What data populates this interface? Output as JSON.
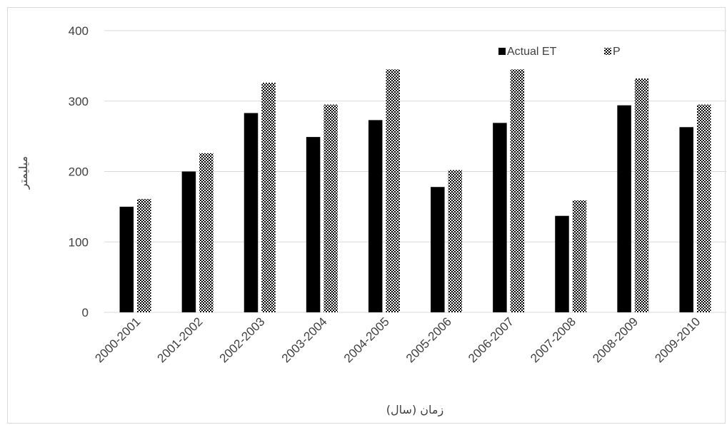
{
  "chart_data": {
    "type": "bar",
    "title": "",
    "xlabel": "زمان (سال)",
    "ylabel": "میلیمتر",
    "categories": [
      "2000-2001",
      "2001-2002",
      "2002-2003",
      "2003-2004",
      "2004-2005",
      "2005-2006",
      "2006-2007",
      "2007-2008",
      "2008-2009",
      "2009-2010"
    ],
    "series": [
      {
        "name": "Actual ET",
        "color": "#000000",
        "pattern": "solid",
        "values": [
          150,
          200,
          283,
          249,
          273,
          178,
          269,
          137,
          294,
          263
        ]
      },
      {
        "name": "P",
        "color": "#000000",
        "pattern": "checkered",
        "values": [
          161,
          226,
          326,
          295,
          345,
          202,
          345,
          159,
          332,
          295
        ]
      }
    ],
    "ylim": [
      0,
      400
    ],
    "yticks": [
      0,
      100,
      200,
      300,
      400
    ],
    "grid": true,
    "legend_position": "top-right",
    "colors": {
      "gridline": "#d9d9d9",
      "text": "#404040"
    }
  }
}
